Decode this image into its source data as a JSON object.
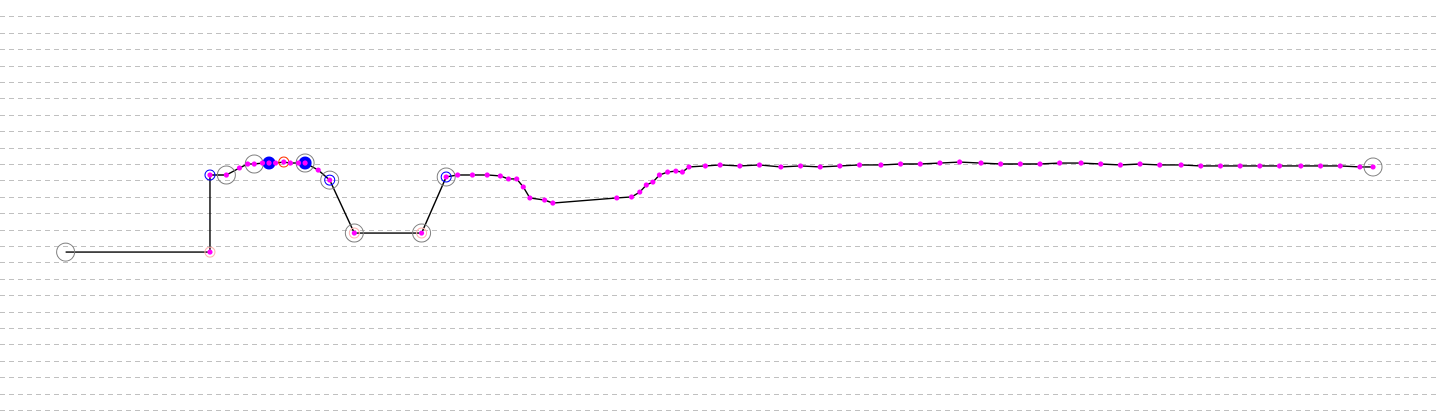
{
  "chart_data": {
    "type": "line",
    "title": "",
    "xlabel": "",
    "ylabel": "",
    "xlim": [
      0,
      87.6
    ],
    "ylim": [
      0,
      24
    ],
    "grid": {
      "horizontal": true,
      "vertical": false,
      "style": "dashed"
    },
    "legend": "none",
    "colors": {
      "line": "#000000",
      "point": "#ff00ff",
      "grid": "#c0c0c0",
      "grey_ring": "#808080",
      "blue": "#0000ff",
      "red_ring": "#ff3300",
      "pink_ring": "#ffb0b0"
    },
    "series": [
      {
        "points": [
          [
            4.0,
            9.63
          ],
          [
            12.8,
            9.63
          ],
          [
            12.8,
            14.33
          ],
          [
            13.8,
            14.33
          ],
          [
            14.6,
            14.76
          ],
          [
            15.1,
            15.0
          ],
          [
            15.5,
            15.0
          ],
          [
            16.0,
            15.06
          ],
          [
            16.4,
            15.06
          ],
          [
            16.8,
            15.06
          ],
          [
            17.3,
            15.12
          ],
          [
            17.7,
            15.06
          ],
          [
            18.2,
            15.06
          ],
          [
            18.6,
            15.06
          ],
          [
            19.4,
            14.63
          ],
          [
            20.1,
            14.02
          ],
          [
            21.6,
            10.79
          ],
          [
            25.7,
            10.79
          ],
          [
            27.2,
            14.21
          ],
          [
            27.9,
            14.33
          ],
          [
            28.8,
            14.33
          ],
          [
            29.7,
            14.33
          ],
          [
            30.5,
            14.27
          ],
          [
            31.0,
            14.09
          ],
          [
            31.5,
            14.09
          ],
          [
            31.9,
            13.6
          ],
          [
            32.3,
            12.93
          ],
          [
            33.2,
            12.8
          ],
          [
            33.7,
            12.62
          ],
          [
            37.6,
            12.93
          ],
          [
            38.5,
            12.99
          ],
          [
            39.0,
            13.29
          ],
          [
            39.4,
            13.72
          ],
          [
            39.8,
            13.9
          ],
          [
            40.2,
            14.33
          ],
          [
            40.7,
            14.51
          ],
          [
            41.2,
            14.57
          ],
          [
            41.6,
            14.51
          ],
          [
            42.0,
            14.82
          ],
          [
            43.0,
            14.88
          ],
          [
            43.9,
            14.94
          ],
          [
            45.1,
            14.88
          ],
          [
            46.3,
            14.94
          ],
          [
            47.6,
            14.82
          ],
          [
            48.8,
            14.88
          ],
          [
            50.0,
            14.82
          ],
          [
            51.2,
            14.88
          ],
          [
            52.4,
            14.94
          ],
          [
            53.7,
            14.94
          ],
          [
            54.9,
            15.0
          ],
          [
            56.1,
            15.0
          ],
          [
            57.3,
            15.06
          ],
          [
            58.5,
            15.12
          ],
          [
            59.8,
            15.06
          ],
          [
            61.0,
            15.0
          ],
          [
            62.2,
            15.0
          ],
          [
            63.4,
            15.0
          ],
          [
            64.6,
            15.06
          ],
          [
            65.9,
            15.06
          ],
          [
            67.1,
            15.0
          ],
          [
            68.3,
            14.94
          ],
          [
            69.5,
            15.0
          ],
          [
            70.7,
            14.94
          ],
          [
            72.0,
            14.94
          ],
          [
            73.2,
            14.88
          ],
          [
            74.4,
            14.88
          ],
          [
            75.6,
            14.88
          ],
          [
            76.8,
            14.88
          ],
          [
            78.0,
            14.88
          ],
          [
            79.3,
            14.88
          ],
          [
            80.5,
            14.88
          ],
          [
            81.7,
            14.88
          ],
          [
            82.9,
            14.82
          ],
          [
            83.7,
            14.82
          ]
        ]
      }
    ],
    "markers": [
      {
        "index": 0,
        "types": [
          "grey-ring"
        ]
      },
      {
        "index": 1,
        "types": [
          "pink-ring"
        ]
      },
      {
        "index": 2,
        "types": [
          "blue-ring"
        ]
      },
      {
        "index": 3,
        "types": [
          "grey-ring"
        ]
      },
      {
        "index": 6,
        "types": [
          "grey-ring"
        ]
      },
      {
        "index": 8,
        "types": [
          "blue-dot"
        ]
      },
      {
        "index": 10,
        "types": [
          "red-ring"
        ]
      },
      {
        "index": 13,
        "types": [
          "grey-ring",
          "blue-dot"
        ]
      },
      {
        "index": 15,
        "types": [
          "grey-ring",
          "blue-ring"
        ]
      },
      {
        "index": 16,
        "types": [
          "grey-ring",
          "pink-ring"
        ]
      },
      {
        "index": 17,
        "types": [
          "grey-ring",
          "pink-ring"
        ]
      },
      {
        "index": 18,
        "types": [
          "grey-ring",
          "blue-ring"
        ]
      },
      {
        "index": 73,
        "types": [
          "grey-ring"
        ]
      }
    ]
  }
}
